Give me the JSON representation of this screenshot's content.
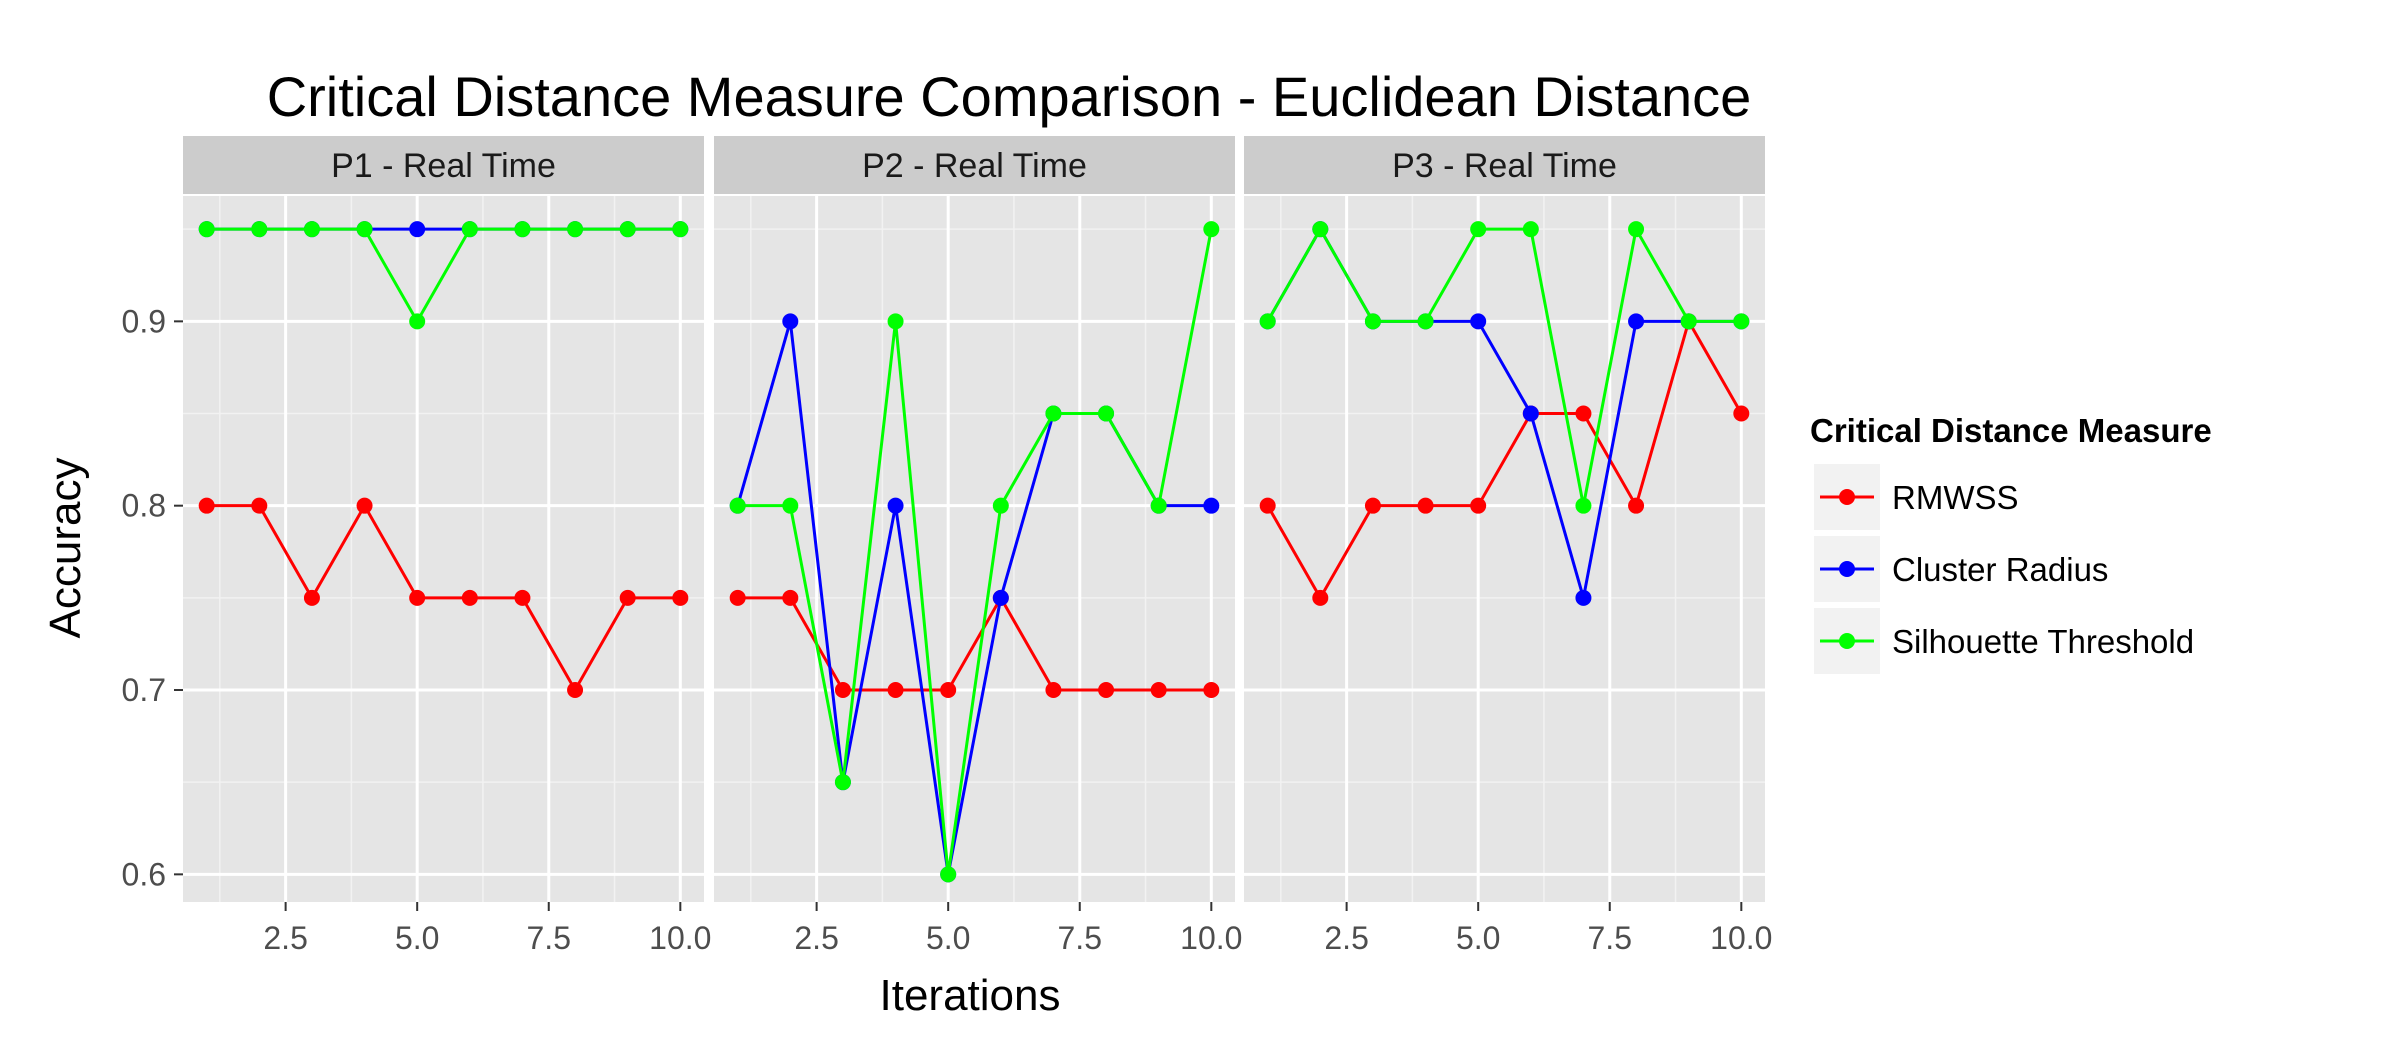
{
  "chart_data": {
    "type": "line",
    "title": "Critical Distance Measure Comparison - Euclidean Distance",
    "xlabel": "Iterations",
    "ylabel": "Accuracy",
    "xlim": [
      0.55,
      10.45
    ],
    "ylim": [
      0.585,
      0.968
    ],
    "xticks": [
      2.5,
      5.0,
      7.5,
      10.0
    ],
    "xtick_labels": [
      "2.5",
      "5.0",
      "7.5",
      "10.0"
    ],
    "yticks": [
      0.6,
      0.7,
      0.8,
      0.9
    ],
    "ytick_labels": [
      "0.6",
      "0.7",
      "0.8",
      "0.9"
    ],
    "grid": true,
    "legend_title": "Critical Distance Measure",
    "legend_position": "right",
    "series_styles": [
      {
        "name": "RMWSS",
        "color": "#ff0000"
      },
      {
        "name": "Cluster Radius",
        "color": "#0000ff"
      },
      {
        "name": "Silhouette Threshold",
        "color": "#00ff00"
      }
    ],
    "panels": [
      {
        "strip": "P1 - Real Time",
        "x": [
          1,
          2,
          3,
          4,
          5,
          6,
          7,
          8,
          9,
          10
        ],
        "series": [
          {
            "name": "RMWSS",
            "values": [
              0.8,
              0.8,
              0.75,
              0.8,
              0.75,
              0.75,
              0.75,
              0.7,
              0.75,
              0.75
            ]
          },
          {
            "name": "Cluster Radius",
            "values": [
              0.95,
              0.95,
              0.95,
              0.95,
              0.95,
              0.95,
              0.95,
              0.95,
              0.95,
              0.95
            ]
          },
          {
            "name": "Silhouette Threshold",
            "values": [
              0.95,
              0.95,
              0.95,
              0.95,
              0.9,
              0.95,
              0.95,
              0.95,
              0.95,
              0.95
            ]
          }
        ]
      },
      {
        "strip": "P2 - Real Time",
        "x": [
          1,
          2,
          3,
          4,
          5,
          6,
          7,
          8,
          9,
          10
        ],
        "series": [
          {
            "name": "RMWSS",
            "values": [
              0.75,
              0.75,
              0.7,
              0.7,
              0.7,
              0.75,
              0.7,
              0.7,
              0.7,
              0.7
            ]
          },
          {
            "name": "Cluster Radius",
            "values": [
              0.8,
              0.9,
              0.65,
              0.8,
              0.6,
              0.75,
              0.85,
              0.85,
              0.8,
              0.8
            ]
          },
          {
            "name": "Silhouette Threshold",
            "values": [
              0.8,
              0.8,
              0.65,
              0.9,
              0.6,
              0.8,
              0.85,
              0.85,
              0.8,
              0.95
            ]
          }
        ]
      },
      {
        "strip": "P3 - Real Time",
        "x": [
          1,
          2,
          3,
          4,
          5,
          6,
          7,
          8,
          9,
          10
        ],
        "series": [
          {
            "name": "RMWSS",
            "values": [
              0.8,
              0.75,
              0.8,
              0.8,
              0.8,
              0.85,
              0.85,
              0.8,
              0.9,
              0.85
            ]
          },
          {
            "name": "Cluster Radius",
            "values": [
              0.9,
              0.95,
              0.9,
              0.9,
              0.9,
              0.85,
              0.75,
              0.9,
              0.9,
              0.9
            ]
          },
          {
            "name": "Silhouette Threshold",
            "values": [
              0.9,
              0.95,
              0.9,
              0.9,
              0.95,
              0.95,
              0.8,
              0.95,
              0.9,
              0.9
            ]
          }
        ]
      }
    ],
    "colors": {
      "panel_background": "#e5e5e5",
      "strip_background": "#cccccc",
      "grid_major": "#ffffff",
      "grid_minor": "#f2f2f2"
    }
  }
}
